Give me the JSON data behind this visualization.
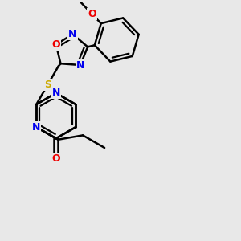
{
  "bg_color": "#e8e8e8",
  "bond_color": "#000000",
  "bond_width": 1.8,
  "atom_colors": {
    "N": "#0000ee",
    "O": "#ee0000",
    "S": "#ccaa00",
    "C": "#000000"
  },
  "font_size": 9.0
}
